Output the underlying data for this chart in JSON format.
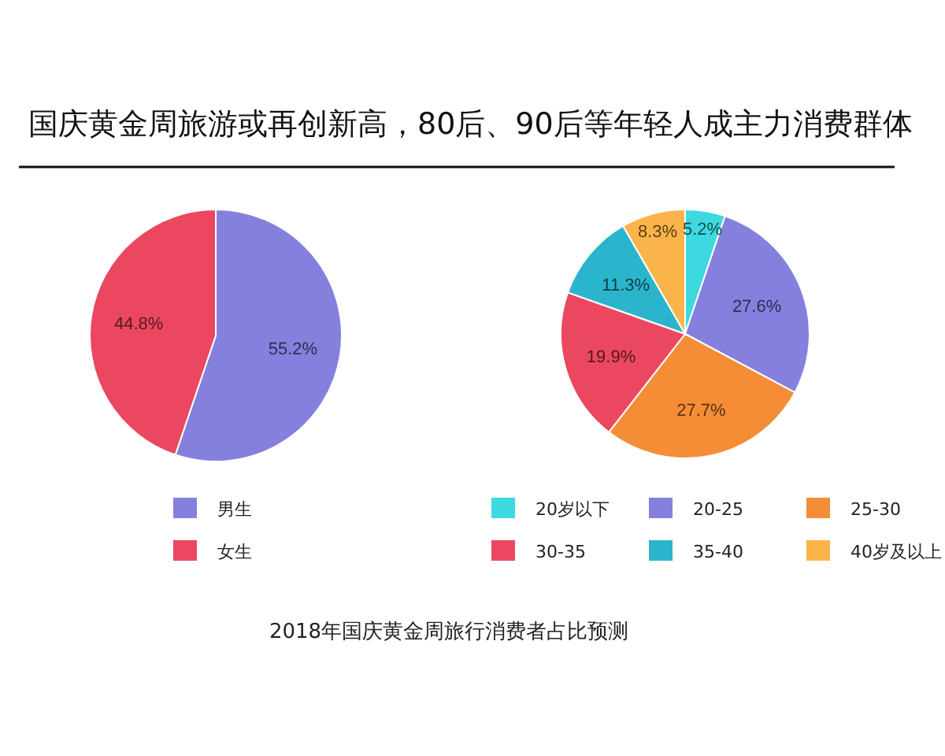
{
  "chart_data": [
    {
      "type": "pie",
      "title": "国庆黄金周旅游或再创新高，80后、90后等年轻人成主力消费群体",
      "annotations": [
        "2018年国庆黄金周旅行消费者占比预测"
      ],
      "categories": [
        "男生",
        "女生"
      ],
      "values": [
        55.2,
        44.8
      ],
      "colors": [
        "#8580de",
        "#ec4760"
      ],
      "value_labels": [
        "55.2%",
        "44.8%"
      ],
      "legend": "bottom"
    },
    {
      "type": "pie",
      "categories": [
        "20岁以下",
        "20-25",
        "25-30",
        "30-35",
        "35-40",
        "40岁及以上"
      ],
      "values": [
        5.2,
        27.6,
        27.7,
        19.9,
        11.3,
        8.3
      ],
      "colors": [
        "#3dd8e0",
        "#8580de",
        "#f58d36",
        "#ec4760",
        "#2bb5cc",
        "#fbb44a"
      ],
      "value_labels": [
        "5.2%",
        "27.6%",
        "27.7%",
        "19.9%",
        "11.3%",
        "8.3%"
      ],
      "legend": "bottom"
    }
  ]
}
